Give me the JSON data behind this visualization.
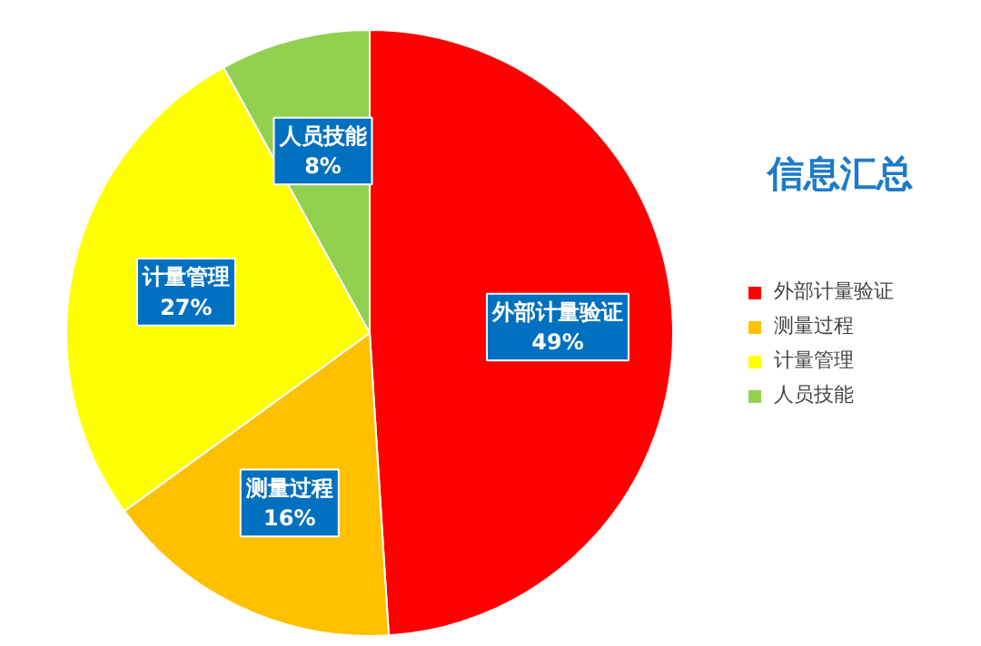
{
  "chart_data": {
    "type": "pie",
    "title": "信息汇总",
    "categories": [
      "外部计量验证",
      "测量过程",
      "计量管理",
      "人员技能"
    ],
    "values": [
      49,
      16,
      27,
      8
    ],
    "colors": [
      "#ff0000",
      "#ffc000",
      "#ffff00",
      "#92d050"
    ],
    "value_labels": [
      "49%",
      "16%",
      "27%",
      "8%"
    ],
    "legend": "right"
  }
}
